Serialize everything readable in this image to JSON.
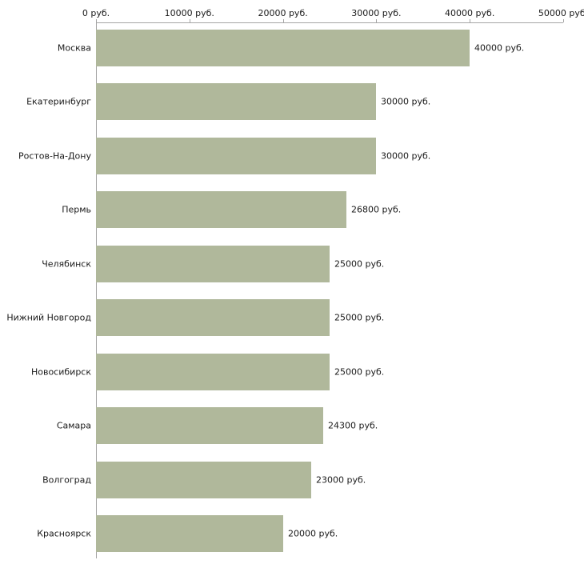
{
  "chart_data": {
    "type": "bar",
    "orientation": "horizontal",
    "title": "",
    "xlabel": "",
    "ylabel": "",
    "categories": [
      "Москва",
      "Екатеринбург",
      "Ростов-На-Дону",
      "Пермь",
      "Челябинск",
      "Нижний Новгород",
      "Новосибирск",
      "Самара",
      "Волгоград",
      "Красноярск"
    ],
    "values": [
      40000,
      30000,
      30000,
      26800,
      25000,
      25000,
      25000,
      24300,
      23000,
      20000
    ],
    "value_labels": [
      "40000 руб.",
      "30000 руб.",
      "30000 руб.",
      "26800 руб.",
      "25000 руб.",
      "25000 руб.",
      "25000 руб.",
      "24300 руб.",
      "23000 руб.",
      "20000 руб."
    ],
    "x_ticks": [
      0,
      10000,
      20000,
      30000,
      40000,
      50000
    ],
    "x_tick_labels": [
      "0 руб.",
      "10000 руб.",
      "20000 руб.",
      "30000 руб.",
      "40000 руб.",
      "50000 руб."
    ],
    "xlim": [
      0,
      50000
    ],
    "grid": false,
    "legend_position": "none",
    "bar_color": "#b0b89b",
    "axis_color": "#a5a5a5",
    "text_color": "#1a1a1a"
  }
}
